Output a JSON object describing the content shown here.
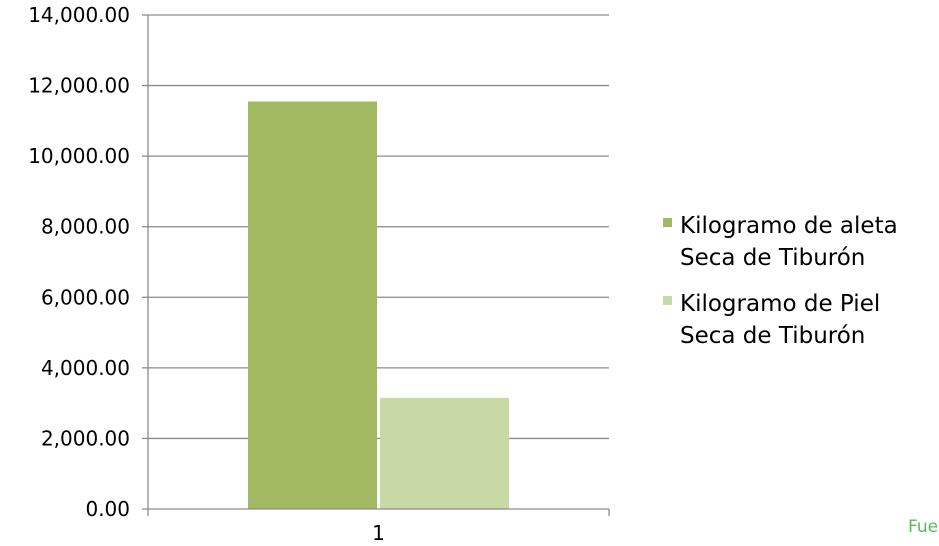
{
  "chart_data": {
    "type": "bar",
    "categories": [
      "1"
    ],
    "series": [
      {
        "name": "Kilogramo de aleta Seca de Tiburón",
        "values": [
          11550
        ],
        "color": "#a2b962"
      },
      {
        "name": "Kilogramo de Piel Seca de Tiburón",
        "values": [
          3150
        ],
        "color": "#c9d9a6"
      }
    ],
    "ylim": [
      0,
      14000
    ],
    "yticks": [
      "0.00",
      "2,000.00",
      "4,000.00",
      "6,000.00",
      "8,000.00",
      "10,000.00",
      "12,000.00",
      "14,000.00"
    ],
    "grid": true,
    "legend_position": "right",
    "xlabel": "",
    "ylabel": "",
    "title": ""
  },
  "source_fragment": "Fue",
  "colors": {
    "grid": "#8c8c8c",
    "source_text": "#5cb85c"
  }
}
